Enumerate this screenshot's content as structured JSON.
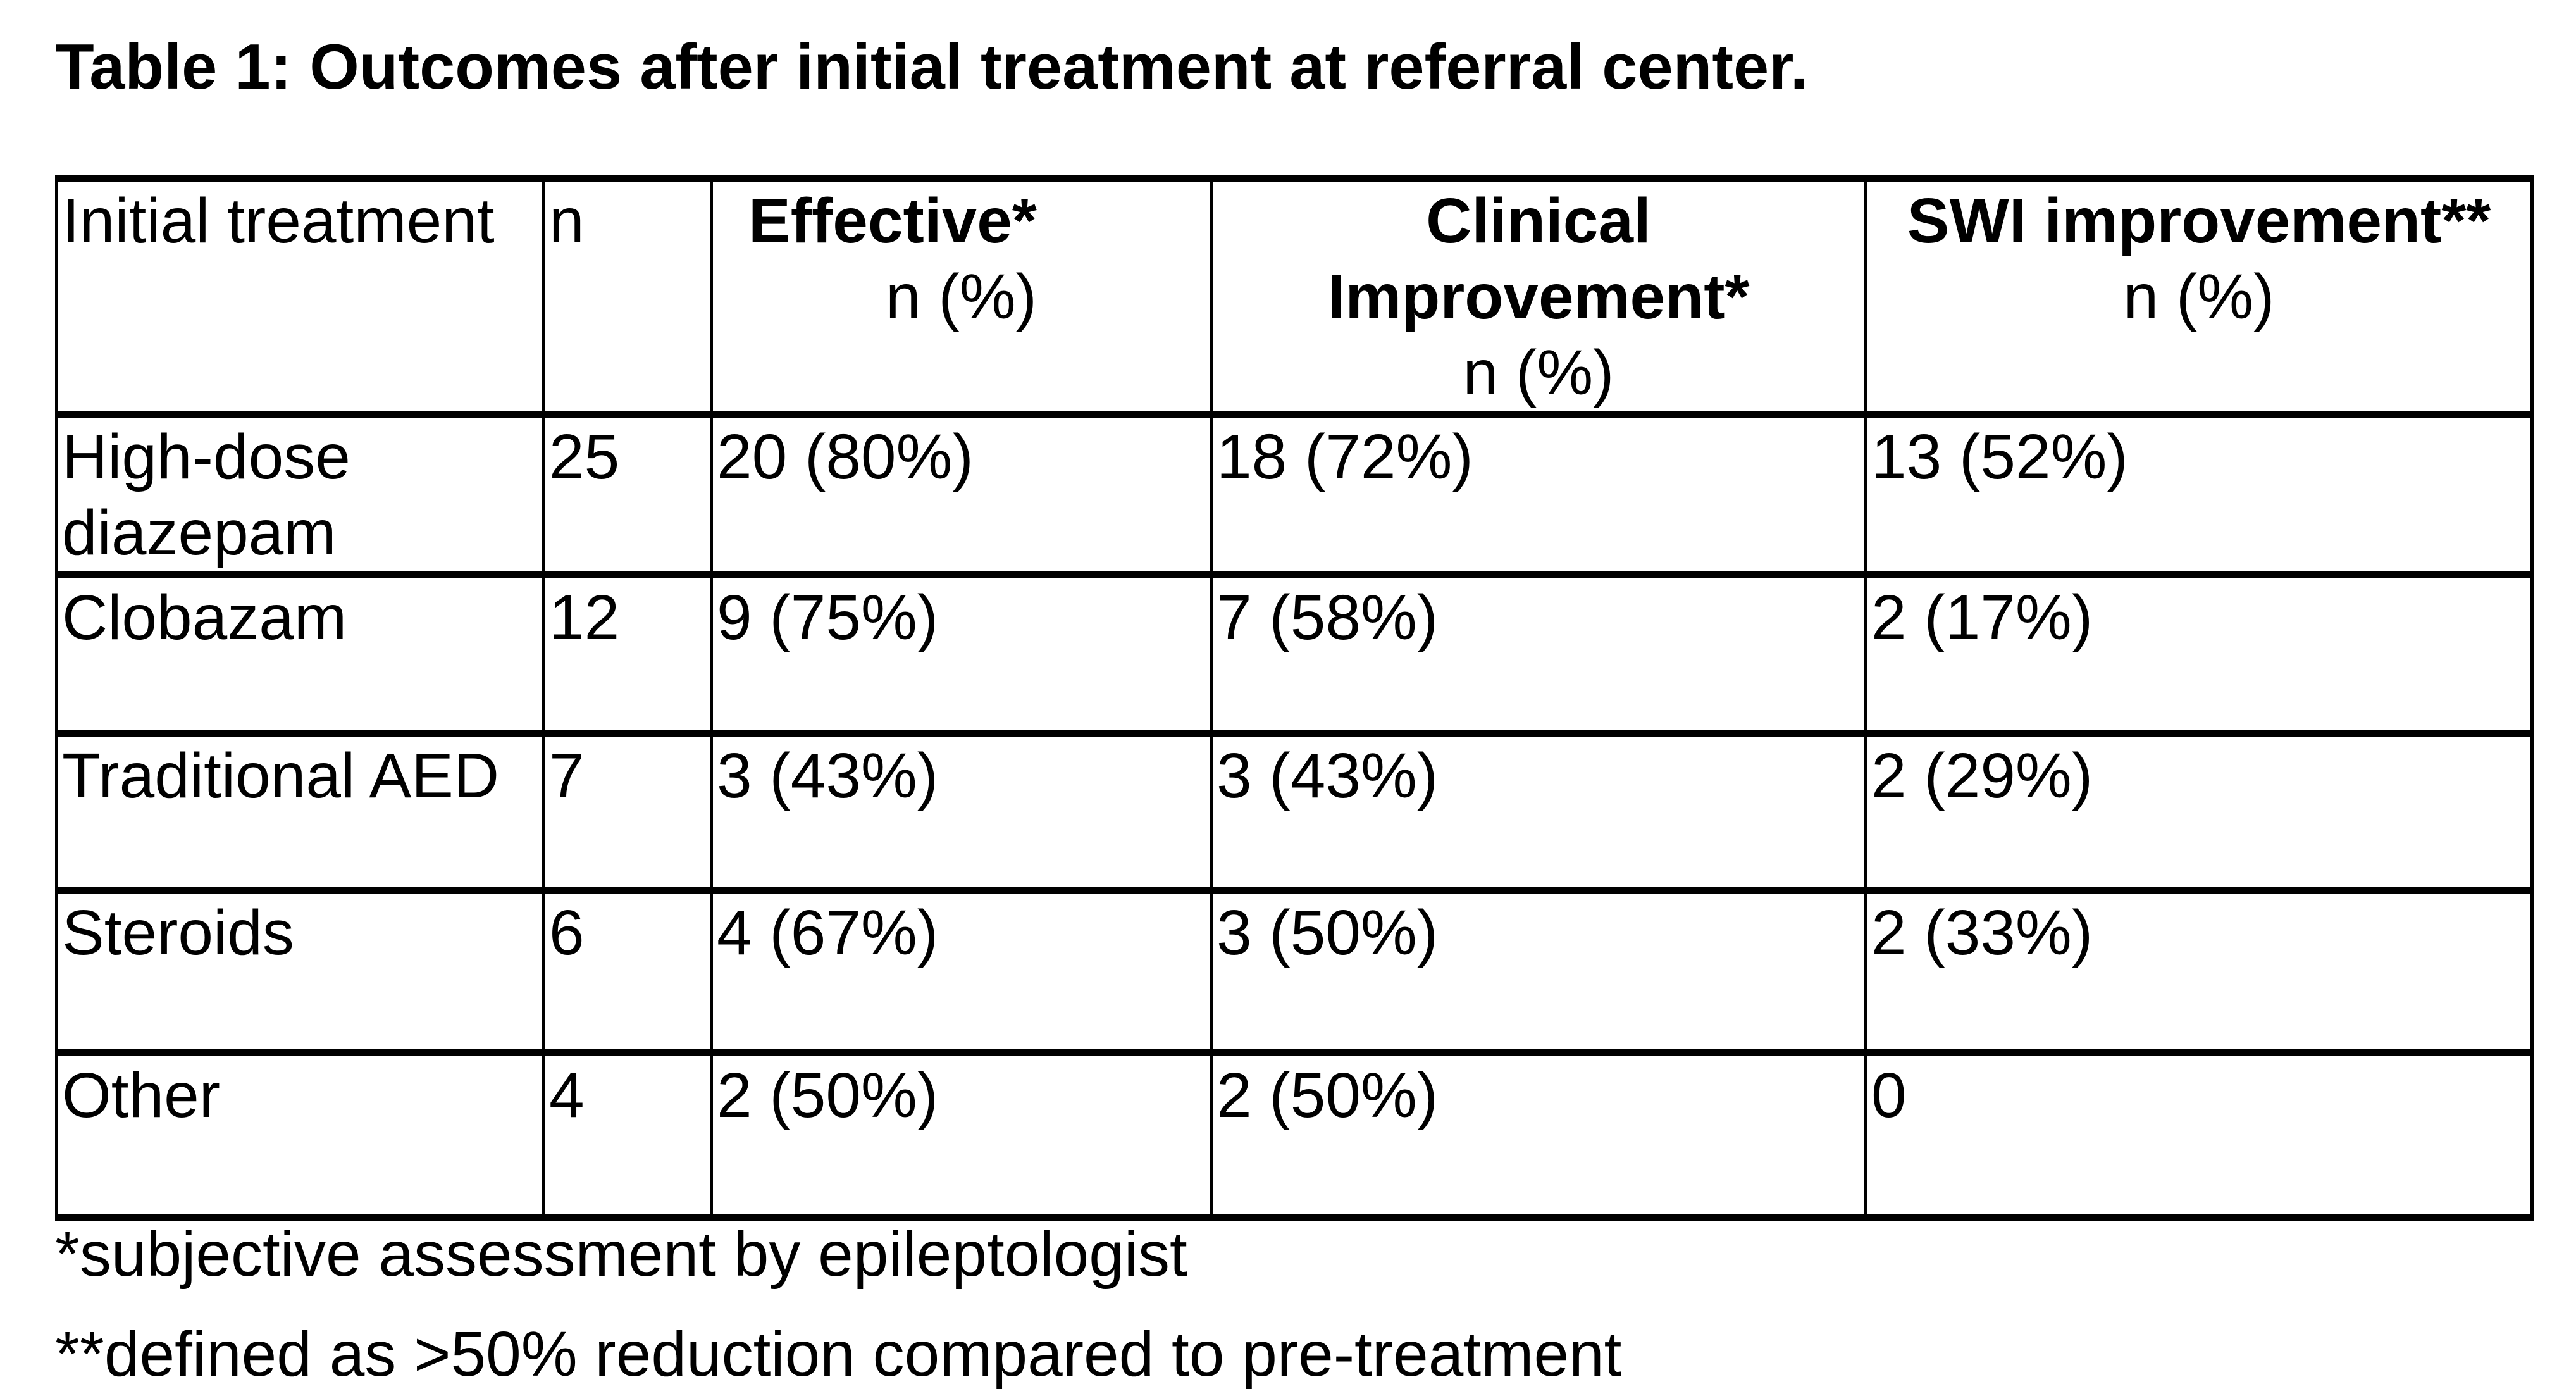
{
  "title": "Table 1: Outcomes after initial treatment at referral center.",
  "table": {
    "header": {
      "treatment": "Initial treatment",
      "n": "n",
      "effective": {
        "title": "Effective*",
        "sub": "n (%)"
      },
      "clinical": {
        "title": "Clinical Improvement*",
        "sub": "n (%)"
      },
      "swi": {
        "title": "SWI improvement**",
        "sub": "n (%)"
      }
    },
    "rows": [
      {
        "treatment": "High-dose diazepam",
        "n": "25",
        "effective": "20 (80%)",
        "clinical": "18 (72%)",
        "swi": "13 (52%)"
      },
      {
        "treatment": "Clobazam",
        "n": "12",
        "effective": "9 (75%)",
        "clinical": "7 (58%)",
        "swi": "2 (17%)"
      },
      {
        "treatment": "Traditional AED",
        "n": "7",
        "effective": "3 (43%)",
        "clinical": "3 (43%)",
        "swi": "2 (29%)"
      },
      {
        "treatment": "Steroids",
        "n": "6",
        "effective": "4 (67%)",
        "clinical": "3 (50%)",
        "swi": "2 (33%)"
      },
      {
        "treatment": "Other",
        "n": "4",
        "effective": "2 (50%)",
        "clinical": "2 (50%)",
        "swi": "0"
      }
    ]
  },
  "footnotes": [
    "*subjective assessment by epileptologist",
    "**defined as >50% reduction compared to pre-treatment"
  ],
  "colors": {
    "text": "#000000",
    "background": "#ffffff",
    "border": "#000000"
  }
}
